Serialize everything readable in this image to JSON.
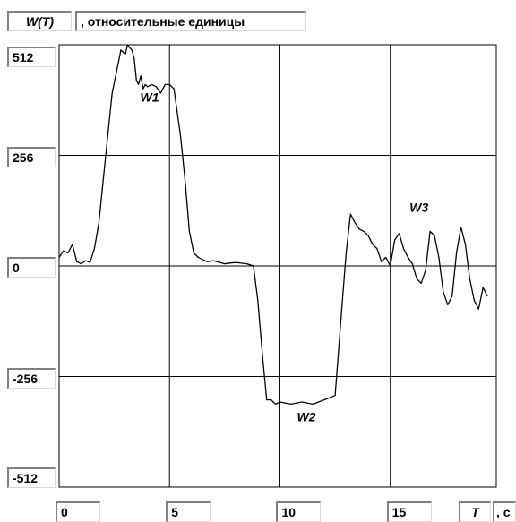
{
  "header": {
    "ylabel_symbol": "W(T)",
    "ylabel_units": ", относительные единицы"
  },
  "footer": {
    "xlabel_symbol": "T",
    "xlabel_units": ", с"
  },
  "colors": {
    "line": "#000000",
    "grid": "#000000",
    "background": "#ffffff"
  },
  "chart_data": {
    "type": "line",
    "xlabel": "T, с",
    "ylabel": "W(T), относительные единицы",
    "xlim": [
      0,
      19.8
    ],
    "ylim": [
      -512,
      512
    ],
    "x_ticks": [
      "0",
      "5",
      "10",
      "15"
    ],
    "y_ticks": [
      "512",
      "256",
      "0",
      "-256",
      "-512"
    ],
    "grid": true,
    "annotations": [
      {
        "text": "W1",
        "x": 4.1,
        "y": 380
      },
      {
        "text": "W2",
        "x": 11.2,
        "y": -360
      },
      {
        "text": "W3",
        "x": 16.3,
        "y": 125
      }
    ],
    "series": [
      {
        "x": [
          0,
          0.2,
          0.4,
          0.6,
          0.8,
          1.0,
          1.2,
          1.4,
          1.6,
          1.8,
          2.0,
          2.2,
          2.4,
          2.6,
          2.8,
          3.0,
          3.1,
          3.2,
          3.3,
          3.4,
          3.5,
          3.6,
          3.7,
          3.8,
          3.9,
          4.0,
          4.2,
          4.4,
          4.6,
          4.8,
          5.0,
          5.2,
          5.5,
          5.7,
          5.9,
          6.1,
          6.3,
          6.5,
          6.7,
          7.0,
          7.5,
          8.0,
          8.5,
          8.8,
          9.0,
          9.2,
          9.4,
          9.6,
          9.8,
          10.0,
          10.5,
          11.0,
          11.5,
          12.0,
          12.5,
          12.8,
          13.0,
          13.2,
          13.4,
          13.6,
          13.8,
          14.0,
          14.2,
          14.4,
          14.6,
          14.8,
          15.0,
          15.2,
          15.4,
          15.6,
          15.8,
          16.0,
          16.2,
          16.4,
          16.6,
          16.8,
          17.0,
          17.2,
          17.4,
          17.6,
          17.8,
          18.0,
          18.2,
          18.4,
          18.6,
          18.8,
          19.0,
          19.2,
          19.4
        ],
        "y": [
          20,
          35,
          30,
          50,
          10,
          5,
          12,
          8,
          40,
          100,
          200,
          300,
          400,
          450,
          500,
          490,
          512,
          505,
          500,
          480,
          430,
          420,
          440,
          410,
          420,
          415,
          420,
          415,
          400,
          420,
          420,
          410,
          300,
          200,
          80,
          30,
          20,
          15,
          10,
          12,
          5,
          8,
          5,
          0,
          -80,
          -200,
          -310,
          -310,
          -320,
          -315,
          -320,
          -315,
          -320,
          -310,
          -300,
          -100,
          30,
          120,
          100,
          85,
          80,
          70,
          50,
          40,
          10,
          20,
          0,
          60,
          75,
          40,
          20,
          5,
          -30,
          -40,
          -10,
          80,
          70,
          20,
          -60,
          -90,
          -70,
          30,
          90,
          50,
          -30,
          -80,
          -100,
          -50,
          -70
        ]
      }
    ]
  }
}
